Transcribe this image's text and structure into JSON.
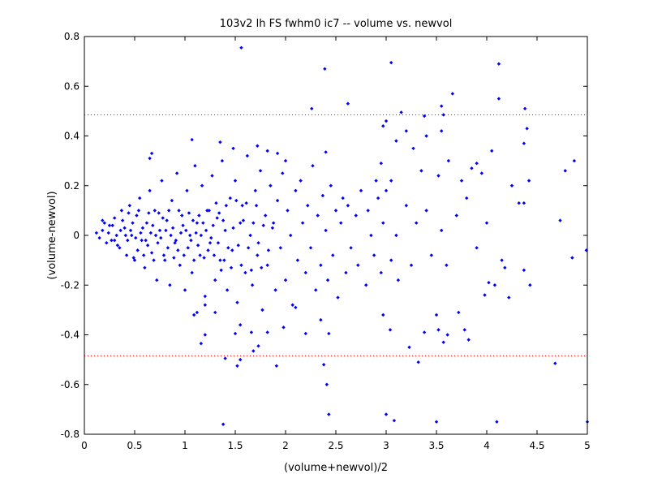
{
  "chart_data": {
    "type": "scatter",
    "title": "103v2 lh FS fwhm0 ic7 -- volume vs. newvol",
    "xlabel": "(volume+newvol)/2",
    "ylabel": "(volume-newvol)",
    "xlim": [
      0,
      5
    ],
    "ylim": [
      -0.8,
      0.8
    ],
    "xticks": [
      0,
      0.5,
      1,
      1.5,
      2,
      2.5,
      3,
      3.5,
      4,
      4.5,
      5
    ],
    "xtick_labels": [
      "0",
      "0.5",
      "1",
      "1.5",
      "2",
      "2.5",
      "3",
      "3.5",
      "4",
      "4.5",
      "5"
    ],
    "yticks": [
      -0.8,
      -0.6,
      -0.4,
      -0.2,
      0,
      0.2,
      0.4,
      0.6,
      0.8
    ],
    "ytick_labels": [
      "-0.8",
      "-0.6",
      "-0.4",
      "-0.2",
      "0",
      "0.2",
      "0.4",
      "0.6",
      "0.8"
    ],
    "grid": false,
    "marker_color": "#0000ff",
    "limit_line_color": "#ff0000",
    "limit_lines": [
      0.485,
      -0.485
    ],
    "series": [
      {
        "points": [
          [
            1.56,
            0.755
          ],
          [
            2.39,
            0.67
          ],
          [
            3.05,
            0.695
          ],
          [
            4.12,
            0.69
          ],
          [
            4.12,
            0.55
          ],
          [
            2.26,
            0.51
          ],
          [
            2.62,
            0.53
          ],
          [
            3.15,
            0.495
          ],
          [
            3.38,
            0.48
          ],
          [
            3.55,
            0.52
          ],
          [
            3.57,
            0.485
          ],
          [
            3.66,
            0.57
          ],
          [
            4.38,
            0.51
          ],
          [
            4.4,
            0.43
          ],
          [
            4.37,
            0.37
          ],
          [
            2.97,
            0.44
          ],
          [
            3.0,
            0.46
          ],
          [
            3.1,
            0.38
          ],
          [
            3.2,
            0.42
          ],
          [
            3.4,
            0.4
          ],
          [
            3.27,
            0.35
          ],
          [
            3.55,
            0.42
          ],
          [
            4.05,
            0.34
          ],
          [
            4.42,
            0.22
          ],
          [
            4.87,
            0.3
          ],
          [
            4.78,
            0.26
          ],
          [
            3.52,
            0.24
          ],
          [
            3.75,
            0.22
          ],
          [
            3.85,
            0.27
          ],
          [
            3.9,
            0.29
          ],
          [
            3.95,
            0.25
          ],
          [
            2.95,
            0.29
          ],
          [
            3.05,
            0.22
          ],
          [
            3.35,
            0.26
          ],
          [
            3.62,
            0.3
          ],
          [
            0.67,
            0.33
          ],
          [
            0.65,
            0.31
          ],
          [
            1.07,
            0.385
          ],
          [
            1.35,
            0.375
          ],
          [
            1.48,
            0.35
          ],
          [
            1.72,
            0.36
          ],
          [
            1.82,
            0.34
          ],
          [
            1.92,
            0.33
          ],
          [
            2.4,
            0.335
          ],
          [
            2.0,
            0.3
          ],
          [
            4.37,
            0.13
          ],
          [
            4.32,
            0.13
          ],
          [
            4.73,
            0.06
          ],
          [
            4.85,
            -0.09
          ],
          [
            4.99,
            -0.06
          ],
          [
            4.43,
            -0.2
          ],
          [
            4.37,
            -0.14
          ],
          [
            4.22,
            -0.25
          ],
          [
            4.18,
            -0.13
          ],
          [
            4.08,
            -0.2
          ],
          [
            4.02,
            -0.19
          ],
          [
            3.98,
            -0.24
          ],
          [
            3.72,
            -0.31
          ],
          [
            3.82,
            -0.42
          ],
          [
            3.78,
            -0.38
          ],
          [
            3.61,
            -0.4
          ],
          [
            3.57,
            -0.43
          ],
          [
            3.52,
            -0.38
          ],
          [
            3.5,
            -0.32
          ],
          [
            3.38,
            -0.39
          ],
          [
            3.32,
            -0.51
          ],
          [
            3.23,
            -0.45
          ],
          [
            3.04,
            -0.38
          ],
          [
            2.97,
            -0.32
          ],
          [
            3.0,
            -0.72
          ],
          [
            3.08,
            -0.745
          ],
          [
            3.5,
            -0.75
          ],
          [
            4.1,
            -0.75
          ],
          [
            5.0,
            -0.75
          ],
          [
            4.68,
            -0.515
          ],
          [
            2.38,
            -0.52
          ],
          [
            2.41,
            -0.6
          ],
          [
            2.43,
            -0.72
          ],
          [
            2.43,
            -0.395
          ],
          [
            2.35,
            -0.34
          ],
          [
            1.55,
            -0.5
          ],
          [
            1.52,
            -0.525
          ],
          [
            1.4,
            -0.495
          ],
          [
            1.38,
            -0.76
          ],
          [
            1.73,
            -0.445
          ],
          [
            1.68,
            -0.465
          ],
          [
            1.91,
            -0.525
          ],
          [
            2.2,
            -0.395
          ],
          [
            1.98,
            -0.37
          ],
          [
            1.66,
            -0.39
          ],
          [
            1.2,
            -0.4
          ],
          [
            1.16,
            -0.435
          ],
          [
            1.3,
            -0.31
          ],
          [
            1.2,
            -0.245
          ],
          [
            1.12,
            -0.31
          ],
          [
            1.09,
            -0.32
          ],
          [
            1.5,
            -0.395
          ],
          [
            1.55,
            -0.36
          ],
          [
            1.82,
            -0.39
          ],
          [
            2.1,
            -0.29
          ],
          [
            0.12,
            0.01
          ],
          [
            0.15,
            -0.01
          ],
          [
            0.18,
            0.02
          ],
          [
            0.2,
            0.05
          ],
          [
            0.22,
            -0.03
          ],
          [
            0.25,
            0.04
          ],
          [
            0.27,
            -0.02
          ],
          [
            0.3,
            0.07
          ],
          [
            0.32,
            0.0
          ],
          [
            0.35,
            -0.05
          ],
          [
            0.37,
            0.1
          ],
          [
            0.4,
            0.03
          ],
          [
            0.42,
            -0.08
          ],
          [
            0.45,
            0.12
          ],
          [
            0.47,
            0.0
          ],
          [
            0.5,
            -0.1
          ],
          [
            0.52,
            0.08
          ],
          [
            0.55,
            0.15
          ],
          [
            0.57,
            -0.02
          ],
          [
            0.6,
            -0.13
          ],
          [
            0.62,
            0.05
          ],
          [
            0.65,
            0.18
          ],
          [
            0.67,
            -0.07
          ],
          [
            0.7,
            0.1
          ],
          [
            0.72,
            -0.18
          ],
          [
            0.75,
            0.02
          ],
          [
            0.77,
            0.22
          ],
          [
            0.8,
            -0.1
          ],
          [
            0.82,
            0.06
          ],
          [
            0.85,
            -0.2
          ],
          [
            0.87,
            0.14
          ],
          [
            0.9,
            -0.03
          ],
          [
            0.92,
            0.25
          ],
          [
            0.95,
            -0.12
          ],
          [
            0.97,
            0.08
          ],
          [
            1.0,
            -0.22
          ],
          [
            1.02,
            0.18
          ],
          [
            1.05,
            0.0
          ],
          [
            1.07,
            -0.15
          ],
          [
            1.1,
            0.28
          ],
          [
            1.12,
            0.05
          ],
          [
            1.15,
            -0.08
          ],
          [
            1.17,
            0.2
          ],
          [
            1.2,
            -0.28
          ],
          [
            1.22,
            0.1
          ],
          [
            1.25,
            -0.03
          ],
          [
            1.27,
            0.24
          ],
          [
            1.3,
            -0.18
          ],
          [
            1.32,
            0.07
          ],
          [
            1.35,
            -0.1
          ],
          [
            1.37,
            0.3
          ],
          [
            1.4,
            0.02
          ],
          [
            1.42,
            -0.22
          ],
          [
            1.45,
            0.15
          ],
          [
            1.47,
            -0.06
          ],
          [
            1.5,
            0.22
          ],
          [
            1.52,
            -0.27
          ],
          [
            1.55,
            0.05
          ],
          [
            1.57,
            0.12
          ],
          [
            1.6,
            -0.15
          ],
          [
            1.62,
            0.32
          ],
          [
            1.65,
            0.0
          ],
          [
            1.67,
            -0.2
          ],
          [
            1.7,
            0.18
          ],
          [
            1.72,
            -0.08
          ],
          [
            1.75,
            0.26
          ],
          [
            1.77,
            -0.3
          ],
          [
            1.8,
            0.08
          ],
          [
            1.82,
            -0.12
          ],
          [
            1.85,
            0.2
          ],
          [
            1.87,
            0.03
          ],
          [
            1.9,
            -0.22
          ],
          [
            1.92,
            0.14
          ],
          [
            1.95,
            -0.05
          ],
          [
            1.97,
            0.25
          ],
          [
            2.0,
            -0.18
          ],
          [
            2.02,
            0.1
          ],
          [
            2.05,
            0.0
          ],
          [
            2.07,
            -0.28
          ],
          [
            2.1,
            0.18
          ],
          [
            2.12,
            -0.1
          ],
          [
            2.15,
            0.22
          ],
          [
            2.17,
            0.05
          ],
          [
            2.2,
            -0.15
          ],
          [
            2.22,
            0.12
          ],
          [
            2.25,
            -0.05
          ],
          [
            2.27,
            0.28
          ],
          [
            2.3,
            -0.22
          ],
          [
            2.32,
            0.08
          ],
          [
            2.35,
            -0.12
          ],
          [
            2.37,
            0.16
          ],
          [
            2.4,
            0.02
          ],
          [
            2.42,
            -0.18
          ],
          [
            2.45,
            0.2
          ],
          [
            2.47,
            -0.08
          ],
          [
            2.5,
            0.1
          ],
          [
            2.52,
            -0.25
          ],
          [
            2.55,
            0.05
          ],
          [
            2.57,
            0.15
          ],
          [
            2.6,
            -0.15
          ],
          [
            2.62,
            0.12
          ],
          [
            2.65,
            -0.05
          ],
          [
            2.7,
            0.08
          ],
          [
            2.72,
            -0.12
          ],
          [
            2.75,
            0.18
          ],
          [
            2.8,
            -0.2
          ],
          [
            2.82,
            0.1
          ],
          [
            2.85,
            0.0
          ],
          [
            2.88,
            -0.08
          ],
          [
            2.9,
            0.22
          ],
          [
            2.92,
            0.15
          ],
          [
            2.95,
            -0.15
          ],
          [
            2.97,
            0.05
          ],
          [
            3.0,
            0.18
          ],
          [
            3.05,
            -0.1
          ],
          [
            3.1,
            0.0
          ],
          [
            3.12,
            -0.18
          ],
          [
            3.2,
            0.12
          ],
          [
            3.25,
            -0.12
          ],
          [
            3.3,
            0.05
          ],
          [
            3.4,
            0.1
          ],
          [
            3.45,
            -0.08
          ],
          [
            3.55,
            0.02
          ],
          [
            3.6,
            -0.12
          ],
          [
            3.7,
            0.08
          ],
          [
            3.8,
            0.15
          ],
          [
            3.9,
            -0.05
          ],
          [
            4.0,
            0.05
          ],
          [
            4.15,
            -0.1
          ],
          [
            4.25,
            0.2
          ],
          [
            0.18,
            0.06
          ],
          [
            0.24,
            0.01
          ],
          [
            0.28,
            0.04
          ],
          [
            0.33,
            -0.04
          ],
          [
            0.38,
            0.06
          ],
          [
            0.43,
            -0.02
          ],
          [
            0.48,
            0.05
          ],
          [
            0.53,
            -0.06
          ],
          [
            0.58,
            0.03
          ],
          [
            0.63,
            -0.04
          ],
          [
            0.68,
            0.04
          ],
          [
            0.73,
            -0.03
          ],
          [
            0.78,
            0.07
          ],
          [
            0.83,
            -0.05
          ],
          [
            0.88,
            0.03
          ],
          [
            0.93,
            -0.06
          ],
          [
            0.98,
            0.04
          ],
          [
            1.03,
            -0.05
          ],
          [
            1.08,
            0.06
          ],
          [
            1.13,
            -0.04
          ],
          [
            1.18,
            0.05
          ],
          [
            1.23,
            -0.06
          ],
          [
            1.28,
            0.04
          ],
          [
            1.33,
            -0.03
          ],
          [
            1.38,
            0.06
          ],
          [
            1.43,
            -0.05
          ],
          [
            1.48,
            0.03
          ],
          [
            1.53,
            -0.04
          ],
          [
            1.58,
            0.06
          ],
          [
            1.63,
            -0.05
          ],
          [
            1.68,
            0.05
          ],
          [
            1.73,
            -0.03
          ],
          [
            1.78,
            0.04
          ],
          [
            1.83,
            -0.06
          ],
          [
            1.88,
            0.05
          ],
          [
            0.3,
            -0.02
          ],
          [
            0.36,
            0.02
          ],
          [
            0.41,
            0.0
          ],
          [
            0.46,
            0.02
          ],
          [
            0.51,
            -0.01
          ],
          [
            0.56,
            0.01
          ],
          [
            0.61,
            -0.02
          ],
          [
            0.66,
            0.01
          ],
          [
            0.71,
            0.0
          ],
          [
            0.76,
            -0.01
          ],
          [
            0.81,
            0.02
          ],
          [
            0.86,
            0.0
          ],
          [
            0.91,
            -0.02
          ],
          [
            0.96,
            0.01
          ],
          [
            1.01,
            0.02
          ],
          [
            1.06,
            -0.02
          ],
          [
            1.11,
            0.01
          ],
          [
            1.16,
            0.0
          ],
          [
            1.21,
            0.02
          ],
          [
            1.26,
            -0.01
          ],
          [
            1.31,
            0.13
          ],
          [
            1.36,
            -0.14
          ],
          [
            1.41,
            0.12
          ],
          [
            1.46,
            -0.13
          ],
          [
            1.51,
            0.14
          ],
          [
            1.56,
            -0.12
          ],
          [
            1.61,
            0.13
          ],
          [
            1.66,
            -0.14
          ],
          [
            1.71,
            0.12
          ],
          [
            1.76,
            -0.13
          ],
          [
            0.44,
            0.09
          ],
          [
            0.49,
            -0.09
          ],
          [
            0.54,
            0.1
          ],
          [
            0.59,
            -0.08
          ],
          [
            0.64,
            0.09
          ],
          [
            0.69,
            -0.1
          ],
          [
            0.74,
            0.09
          ],
          [
            0.79,
            -0.08
          ],
          [
            0.84,
            0.1
          ],
          [
            0.89,
            -0.09
          ],
          [
            0.94,
            0.1
          ],
          [
            0.99,
            -0.08
          ],
          [
            1.04,
            0.09
          ],
          [
            1.09,
            -0.1
          ],
          [
            1.14,
            0.08
          ],
          [
            1.19,
            -0.09
          ],
          [
            1.24,
            0.1
          ],
          [
            1.29,
            -0.08
          ],
          [
            1.34,
            0.09
          ],
          [
            1.39,
            -0.1
          ]
        ]
      }
    ]
  }
}
